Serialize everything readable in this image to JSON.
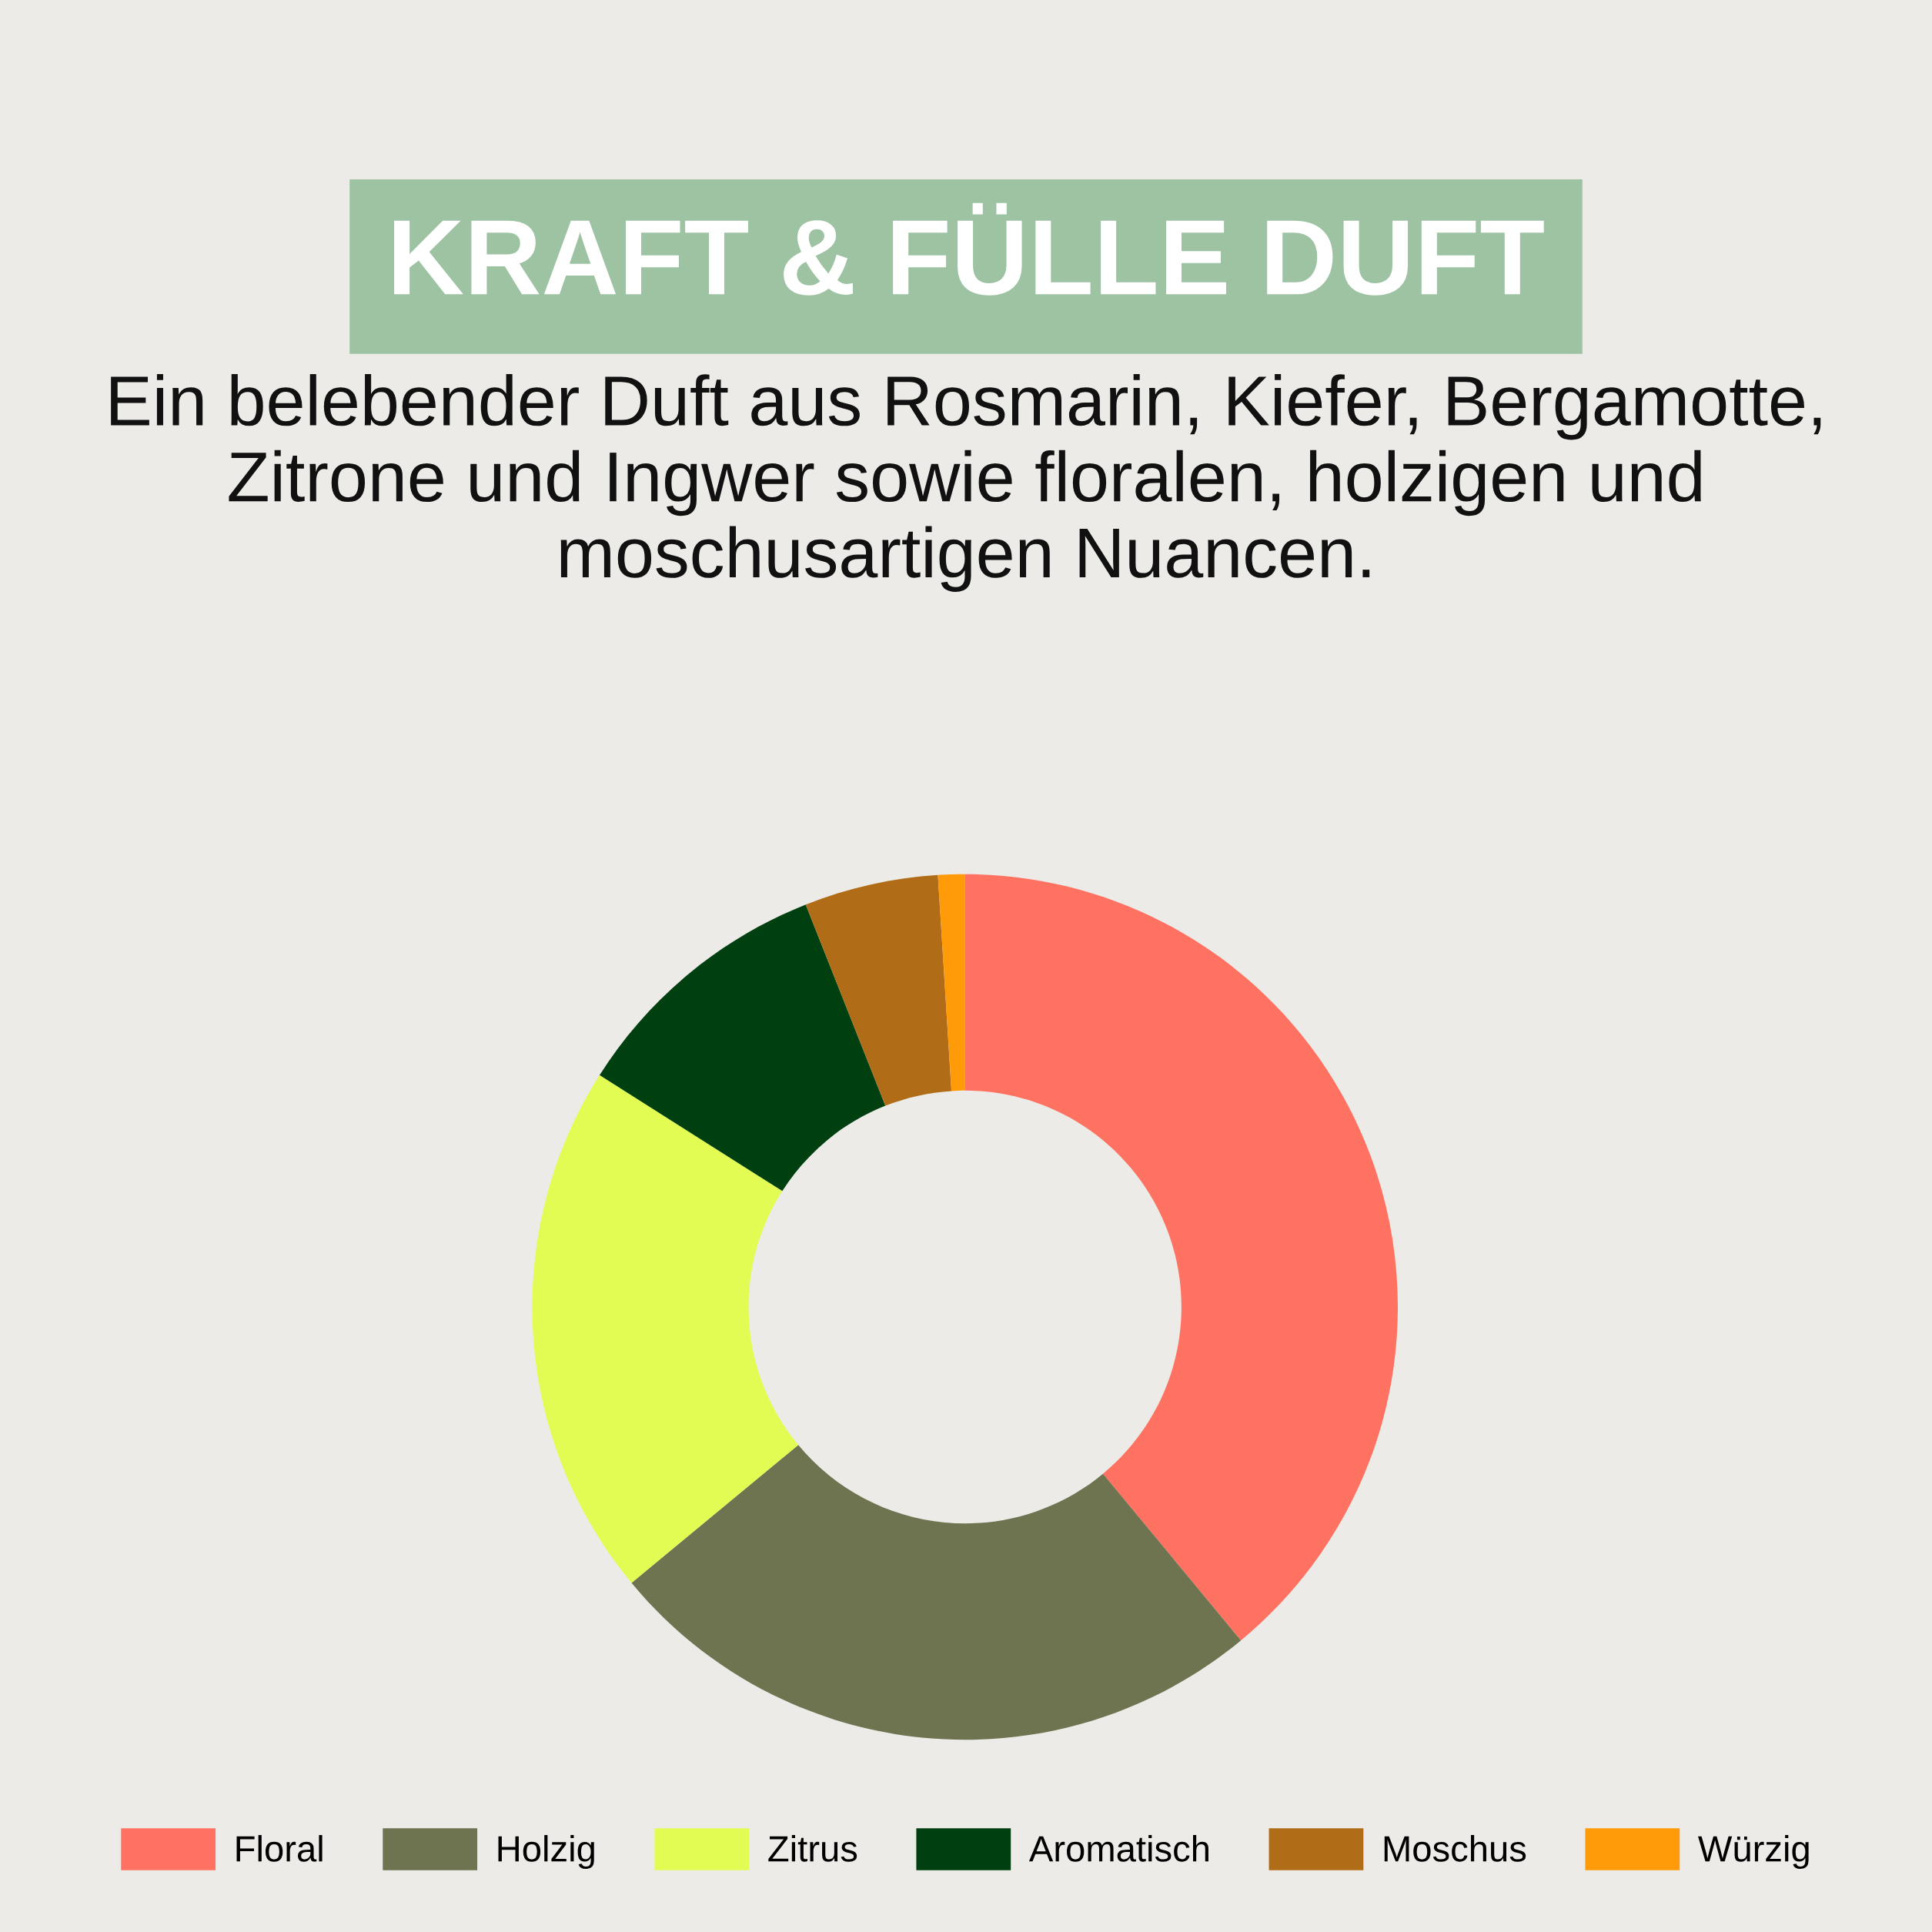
{
  "chart_data": {
    "type": "donut",
    "title": "KRAFT & FÜLLE DUFT",
    "subtitle": "Ein belebender Duft aus Rosmarin, Kiefer, Bergamotte, Zitrone und Ingwer sowie floralen, holzigen und moschusartigen Nuancen.",
    "categories": [
      "Floral",
      "Holzig",
      "Zitrus",
      "Aromatisch",
      "Moschus",
      "Würzig"
    ],
    "values": [
      39,
      25,
      20,
      10,
      5,
      1
    ],
    "colors": [
      "#ff7262",
      "#6e7350",
      "#e3fc54",
      "#004010",
      "#b06c17",
      "#ff9a08"
    ],
    "legend": "bottom"
  }
}
